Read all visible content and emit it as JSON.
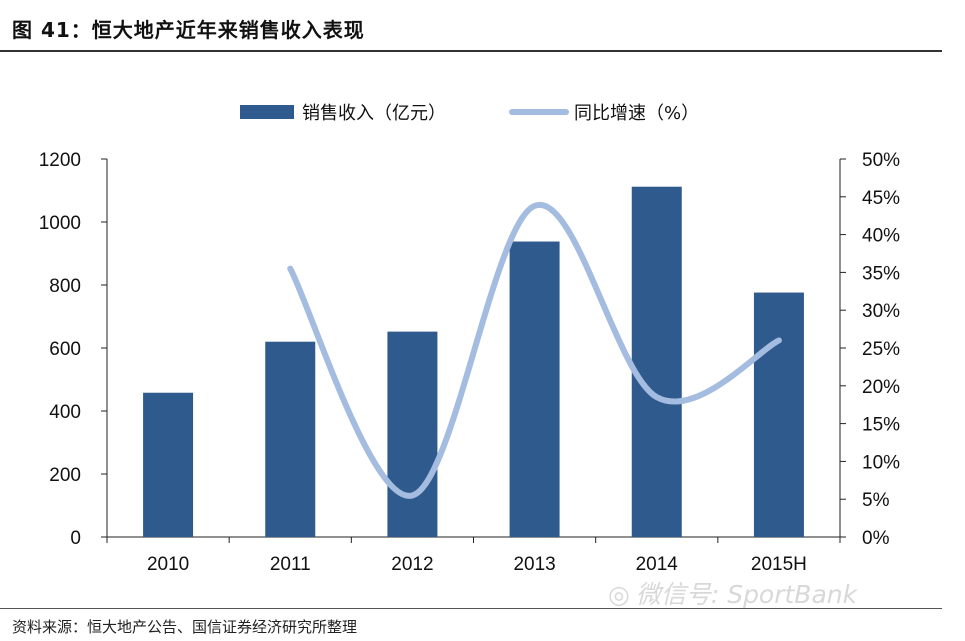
{
  "figure": {
    "title": "图 41：恒大地产近年来销售收入表现",
    "source": "资料来源：恒大地产公告、国信证券经济研究所整理",
    "watermark": "微信号: SportBank",
    "watermark_icon": "wechat-icon"
  },
  "chart_data": {
    "type": "bar",
    "title": "",
    "categories": [
      "2010",
      "2011",
      "2012",
      "2013",
      "2014",
      "2015H"
    ],
    "series": [
      {
        "name": "销售收入（亿元）",
        "type": "bar",
        "axis": "left",
        "color": "#2f5a8e",
        "values": [
          458,
          620,
          652,
          938,
          1112,
          776
        ]
      },
      {
        "name": "同比增速（%）",
        "type": "line",
        "axis": "right",
        "color": "#a3bcdf",
        "values": [
          null,
          35.5,
          5.5,
          43.8,
          18.5,
          26.0
        ]
      }
    ],
    "y_left": {
      "min": 0,
      "max": 1200,
      "step": 200,
      "ticks": [
        "0",
        "200",
        "400",
        "600",
        "800",
        "1000",
        "1200"
      ]
    },
    "y_right": {
      "min": 0,
      "max": 50,
      "step": 5,
      "ticks": [
        "0%",
        "5%",
        "10%",
        "15%",
        "20%",
        "25%",
        "30%",
        "35%",
        "40%",
        "45%",
        "50%"
      ]
    },
    "xlabel": "",
    "ylabel": "",
    "legend_position": "top-center",
    "grid": false
  }
}
